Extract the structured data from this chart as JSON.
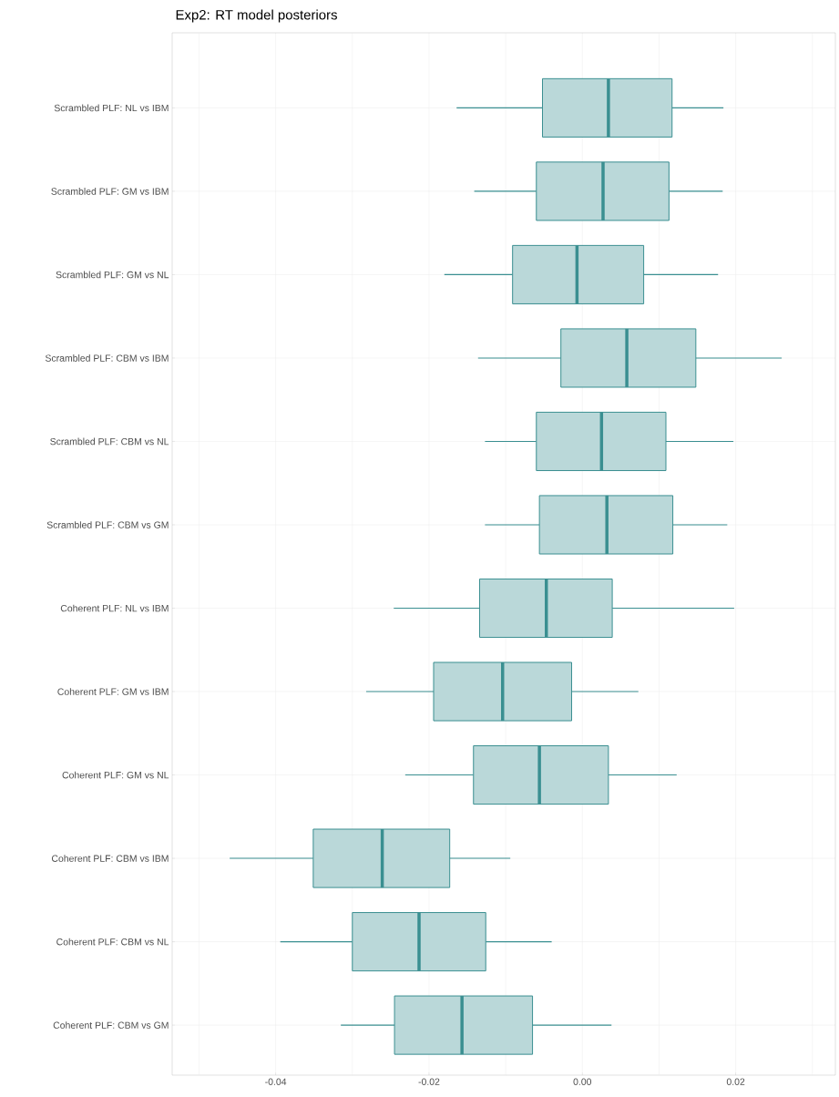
{
  "chart_data": {
    "type": "box",
    "orientation": "horizontal",
    "title": "Exp2: RT model posteriors",
    "categories": [
      "Scrambled PLF: NL vs IBM",
      "Scrambled PLF: GM vs IBM",
      "Scrambled PLF: GM vs NL",
      "Scrambled PLF: CBM vs IBM",
      "Scrambled PLF: CBM vs NL",
      "Scrambled PLF: CBM vs GM",
      "Coherent PLF: NL vs IBM",
      "Coherent PLF: GM vs IBM",
      "Coherent PLF: GM vs NL",
      "Coherent PLF: CBM vs IBM",
      "Coherent PLF: CBM vs NL",
      "Coherent PLF: CBM vs GM"
    ],
    "boxes": [
      {
        "low": -0.0164,
        "q1": -0.0052,
        "median": 0.0034,
        "q3": 0.0117,
        "high": 0.0184
      },
      {
        "low": -0.0141,
        "q1": -0.006,
        "median": 0.0027,
        "q3": 0.0113,
        "high": 0.0183
      },
      {
        "low": -0.018,
        "q1": -0.0091,
        "median": -0.0007,
        "q3": 0.008,
        "high": 0.0177
      },
      {
        "low": -0.0136,
        "q1": -0.0028,
        "median": 0.0058,
        "q3": 0.0148,
        "high": 0.026
      },
      {
        "low": -0.0127,
        "q1": -0.006,
        "median": 0.0025,
        "q3": 0.0109,
        "high": 0.0197
      },
      {
        "low": -0.0127,
        "q1": -0.0056,
        "median": 0.0032,
        "q3": 0.0118,
        "high": 0.0189
      },
      {
        "low": -0.0246,
        "q1": -0.0134,
        "median": -0.0047,
        "q3": 0.0039,
        "high": 0.0198
      },
      {
        "low": -0.0282,
        "q1": -0.0194,
        "median": -0.0104,
        "q3": -0.0014,
        "high": 0.0073
      },
      {
        "low": -0.0231,
        "q1": -0.0142,
        "median": -0.0056,
        "q3": 0.0034,
        "high": 0.0123
      },
      {
        "low": -0.046,
        "q1": -0.0351,
        "median": -0.0261,
        "q3": -0.0173,
        "high": -0.0094
      },
      {
        "low": -0.0394,
        "q1": -0.03,
        "median": -0.0213,
        "q3": -0.0126,
        "high": -0.004
      },
      {
        "low": -0.0315,
        "q1": -0.0245,
        "median": -0.0157,
        "q3": -0.0065,
        "high": 0.0038
      }
    ],
    "color": "#3a8f91",
    "xlim": [
      -0.0535,
      0.033
    ],
    "xticks": [
      {
        "value": -0.05,
        "label": null
      },
      -0.04,
      {
        "value": -0.03,
        "label": null
      },
      -0.02,
      {
        "value": -0.01,
        "label": null
      },
      {
        "value": 0,
        "label": "0.00"
      },
      {
        "value": 0.01,
        "label": null
      },
      0.02,
      {
        "value": 0.03,
        "label": null
      }
    ],
    "grid": true
  }
}
